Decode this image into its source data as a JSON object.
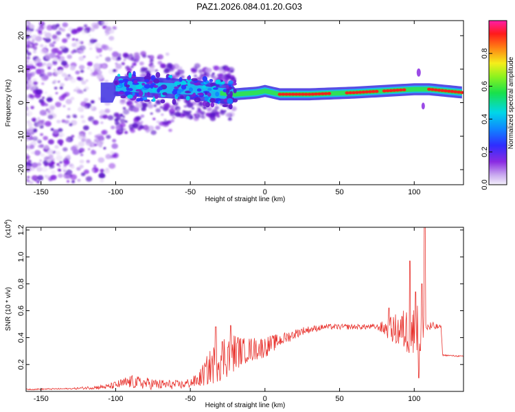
{
  "title": "PAZ1.2026.084.01.20.G03",
  "chart_data": [
    {
      "type": "heatmap",
      "name": "spectrogram",
      "xlabel": "Height of straight line (km)",
      "ylabel": "Frequency (Hz)",
      "xlim": [
        -160,
        133
      ],
      "ylim": [
        -24.5,
        24.5
      ],
      "x_ticks": [
        -150,
        -100,
        -50,
        0,
        50,
        100
      ],
      "y_ticks": [
        -20,
        -10,
        0,
        10,
        20
      ],
      "colorbar": {
        "label": "Normalized spectral amplitude",
        "range": [
          0,
          1
        ],
        "ticks": [
          "0.0",
          "0.2",
          "0.4",
          "0.6",
          "0.8"
        ],
        "colormap": "violet-blue-cyan-green-yellow-red-magenta"
      },
      "signal_center_hz": [
        {
          "x": -100,
          "f": 5.0
        },
        {
          "x": -75,
          "f": 4.5
        },
        {
          "x": -50,
          "f": 4.0
        },
        {
          "x": -35,
          "f": 3.0
        },
        {
          "x": -20,
          "f": 2.5
        },
        {
          "x": -5,
          "f": 3.0
        },
        {
          "x": 0,
          "f": 3.5
        },
        {
          "x": 10,
          "f": 2.5
        },
        {
          "x": 30,
          "f": 2.5
        },
        {
          "x": 60,
          "f": 3.0
        },
        {
          "x": 80,
          "f": 3.5
        },
        {
          "x": 100,
          "f": 4.0
        },
        {
          "x": 110,
          "f": 4.0
        },
        {
          "x": 133,
          "f": 3.0
        }
      ]
    },
    {
      "type": "line",
      "name": "snr",
      "xlabel": "Height of straight line (km)",
      "ylabel": "SNR (10 * v/v)",
      "y_multiplier": "(x10",
      "y_multiplier_exp": "4",
      "xlim": [
        -160,
        133
      ],
      "ylim": [
        0,
        1.22
      ],
      "x_ticks": [
        -150,
        -100,
        -50,
        0,
        50,
        100
      ],
      "y_ticks": [
        "0.2",
        "0.4",
        "0.6",
        "0.8",
        "1.0",
        "1.2"
      ],
      "series": [
        {
          "name": "SNR",
          "color": "#e8312c",
          "envelope_points": [
            {
              "x": -160,
              "y": 0.015,
              "amp": 0.005
            },
            {
              "x": -130,
              "y": 0.02,
              "amp": 0.005
            },
            {
              "x": -105,
              "y": 0.035,
              "amp": 0.02
            },
            {
              "x": -90,
              "y": 0.07,
              "amp": 0.05
            },
            {
              "x": -70,
              "y": 0.05,
              "amp": 0.04
            },
            {
              "x": -55,
              "y": 0.05,
              "amp": 0.03
            },
            {
              "x": -45,
              "y": 0.08,
              "amp": 0.05
            },
            {
              "x": -35,
              "y": 0.2,
              "amp": 0.15
            },
            {
              "x": -25,
              "y": 0.28,
              "amp": 0.18
            },
            {
              "x": -15,
              "y": 0.3,
              "amp": 0.1
            },
            {
              "x": 0,
              "y": 0.33,
              "amp": 0.08
            },
            {
              "x": 10,
              "y": 0.38,
              "amp": 0.05
            },
            {
              "x": 25,
              "y": 0.45,
              "amp": 0.03
            },
            {
              "x": 40,
              "y": 0.48,
              "amp": 0.02
            },
            {
              "x": 75,
              "y": 0.48,
              "amp": 0.02
            },
            {
              "x": 85,
              "y": 0.46,
              "amp": 0.1
            },
            {
              "x": 95,
              "y": 0.45,
              "amp": 0.18
            },
            {
              "x": 104,
              "y": 0.42,
              "amp": 0.25
            },
            {
              "x": 109,
              "y": 0.48,
              "amp": 0.05
            },
            {
              "x": 118,
              "y": 0.48,
              "amp": 0.01
            },
            {
              "x": 119,
              "y": 0.27,
              "amp": 0.005
            },
            {
              "x": 133,
              "y": 0.26,
              "amp": 0.005
            }
          ],
          "peaks": [
            {
              "x": -33,
              "y": 0.48
            },
            {
              "x": -23,
              "y": 0.49
            },
            {
              "x": -18,
              "y": 0.4
            },
            {
              "x": 83,
              "y": 0.62
            },
            {
              "x": 97,
              "y": 0.97
            },
            {
              "x": 101,
              "y": 0.74
            },
            {
              "x": 103,
              "y": 0.1
            },
            {
              "x": 105,
              "y": 0.8
            },
            {
              "x": 107,
              "y": 1.22
            }
          ]
        }
      ]
    }
  ]
}
